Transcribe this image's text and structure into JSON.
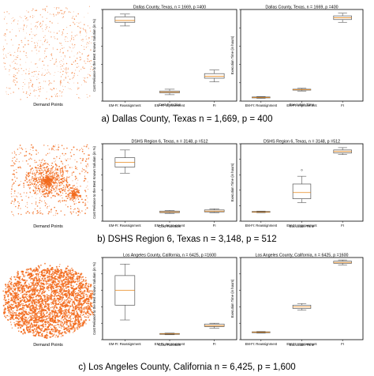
{
  "rows": [
    {
      "caption": "a) Dallas County, Texas n = 1,669, p = 400",
      "map_label": "Demand Points",
      "map_density": "sparse",
      "panels": [
        {
          "title": "Dallas County, Texas, n = 1669, p =400",
          "ylabel": "Cost Reliance to the Best Known Solution (in %)",
          "xlabel": "Cost Function",
          "categories": [
            "EM-FI: Reassignment",
            "EM-FI: Improvement",
            "FI"
          ],
          "boxes": [
            {
              "lo": 0.82,
              "q1": 0.86,
              "med": 0.88,
              "q3": 0.92,
              "hi": 0.95
            },
            {
              "lo": 0.07,
              "q1": 0.09,
              "med": 0.1,
              "q3": 0.11,
              "hi": 0.13
            },
            {
              "lo": 0.21,
              "q1": 0.25,
              "med": 0.27,
              "q3": 0.3,
              "hi": 0.34
            }
          ]
        },
        {
          "title": "Dallas County, Texas, n = 1669, p =400",
          "ylabel": "Execution Time (in hours)",
          "xlabel": "Execution Time",
          "categories": [
            "EM-FI: Reassignment",
            "EM-FI: Improvement",
            "FI"
          ],
          "boxes": [
            {
              "lo": 0.03,
              "q1": 0.035,
              "med": 0.04,
              "q3": 0.045,
              "hi": 0.05
            },
            {
              "lo": 0.11,
              "q1": 0.12,
              "med": 0.125,
              "q3": 0.13,
              "hi": 0.14
            },
            {
              "lo": 0.86,
              "q1": 0.89,
              "med": 0.91,
              "q3": 0.93,
              "hi": 0.96
            }
          ]
        }
      ]
    },
    {
      "caption": "b) DSHS Region 6, Texas n = 3,148, p = 512",
      "map_label": "Demand Points",
      "map_density": "medium",
      "panels": [
        {
          "title": "DSHS Region 6, Texas, n = 3148, p =512",
          "ylabel": "Cost Reliance to the Best Known Solution (in %)",
          "xlabel": "Cost Function",
          "categories": [
            "EM-FI: Reassignment",
            "EM-FI: Improvement",
            "FI"
          ],
          "boxes": [
            {
              "lo": 0.62,
              "q1": 0.7,
              "med": 0.76,
              "q3": 0.82,
              "hi": 0.92
            },
            {
              "lo": 0.1,
              "q1": 0.11,
              "med": 0.12,
              "q3": 0.13,
              "hi": 0.14
            },
            {
              "lo": 0.11,
              "q1": 0.12,
              "med": 0.13,
              "q3": 0.145,
              "hi": 0.16
            }
          ]
        },
        {
          "title": "DSHS Region 6, Texas, n = 3148, p =512",
          "ylabel": "Execution Time (in hours)",
          "xlabel": "Execution Time",
          "categories": [
            "EM-FI: Reassignment",
            "EM-FI: Improvement",
            "FI"
          ],
          "boxes": [
            {
              "lo": 0.11,
              "q1": 0.115,
              "med": 0.12,
              "q3": 0.125,
              "hi": 0.13
            },
            {
              "lo": 0.24,
              "q1": 0.29,
              "med": 0.37,
              "q3": 0.48,
              "hi": 0.58,
              "outliers": [
                0.66
              ]
            },
            {
              "lo": 0.86,
              "q1": 0.88,
              "med": 0.9,
              "q3": 0.92,
              "hi": 0.95
            }
          ]
        }
      ]
    },
    {
      "caption": "c) Los Angeles County, California n = 6,425, p = 1,600",
      "map_label": "Demand Points",
      "map_density": "dense",
      "panels": [
        {
          "title": "Los Angeles County, California, n = 6425, p =1600",
          "ylabel": "Cost Reliance to the Best Known Solution (in %)",
          "xlabel": "Cost Function",
          "categories": [
            "EM-FI: Reassignment",
            "EM-FI: Improvement",
            "FI"
          ],
          "boxes": [
            {
              "lo": 0.24,
              "q1": 0.42,
              "med": 0.6,
              "q3": 0.78,
              "hi": 0.92
            },
            {
              "lo": 0.06,
              "q1": 0.065,
              "med": 0.07,
              "q3": 0.075,
              "hi": 0.08
            },
            {
              "lo": 0.14,
              "q1": 0.16,
              "med": 0.17,
              "q3": 0.19,
              "hi": 0.2
            }
          ]
        },
        {
          "title": "Los Angeles County, California, n = 6425, p =1600",
          "ylabel": "Execution Time (in hours)",
          "xlabel": "Execution Time",
          "categories": [
            "EM-FI: Reassignment",
            "EM-FI: Improvement",
            "FI"
          ],
          "boxes": [
            {
              "lo": 0.08,
              "q1": 0.085,
              "med": 0.09,
              "q3": 0.095,
              "hi": 0.1
            },
            {
              "lo": 0.36,
              "q1": 0.38,
              "med": 0.4,
              "q3": 0.42,
              "hi": 0.44
            },
            {
              "lo": 0.91,
              "q1": 0.93,
              "med": 0.94,
              "q3": 0.955,
              "hi": 0.97
            }
          ]
        }
      ]
    }
  ],
  "chart_data": [
    {
      "type": "box",
      "title": "Dallas County, Texas, n = 1669, p =400",
      "xlabel": "Cost Function",
      "ylabel": "Cost Reliance to the Best Known Solution (in %)",
      "categories": [
        "EM-FI: Reassignment",
        "EM-FI: Improvement",
        "FI"
      ],
      "y_tick_labels": "not legible"
    },
    {
      "type": "box",
      "title": "Dallas County, Texas, n = 1669, p =400",
      "xlabel": "Execution Time",
      "ylabel": "Execution Time (in hours)",
      "categories": [
        "EM-FI: Reassignment",
        "EM-FI: Improvement",
        "FI"
      ],
      "y_tick_labels": "not legible"
    },
    {
      "type": "box",
      "title": "DSHS Region 6, Texas, n = 3148, p =512",
      "xlabel": "Cost Function",
      "ylabel": "Cost Reliance to the Best Known Solution (in %)",
      "categories": [
        "EM-FI: Reassignment",
        "EM-FI: Improvement",
        "FI"
      ],
      "y_tick_labels": "not legible"
    },
    {
      "type": "box",
      "title": "DSHS Region 6, Texas, n = 3148, p =512",
      "xlabel": "Execution Time",
      "ylabel": "Execution Time (in hours)",
      "categories": [
        "EM-FI: Reassignment",
        "EM-FI: Improvement",
        "FI"
      ],
      "y_tick_labels": "not legible"
    },
    {
      "type": "box",
      "title": "Los Angeles County, California, n = 6425, p =1600",
      "xlabel": "Cost Function",
      "ylabel": "Cost Reliance to the Best Known Solution (in %)",
      "categories": [
        "EM-FI: Reassignment",
        "EM-FI: Improvement",
        "FI"
      ],
      "y_tick_labels": "not legible"
    },
    {
      "type": "box",
      "title": "Los Angeles County, California, n = 6425, p =1600",
      "xlabel": "Execution Time",
      "ylabel": "Execution Time (in hours)",
      "categories": [
        "EM-FI: Reassignment",
        "EM-FI: Improvement",
        "FI"
      ],
      "y_tick_labels": "not legible"
    }
  ],
  "colors": {
    "points": "#f26b1d",
    "box": "#555555",
    "median": "#e8891c",
    "axis": "#000000"
  }
}
